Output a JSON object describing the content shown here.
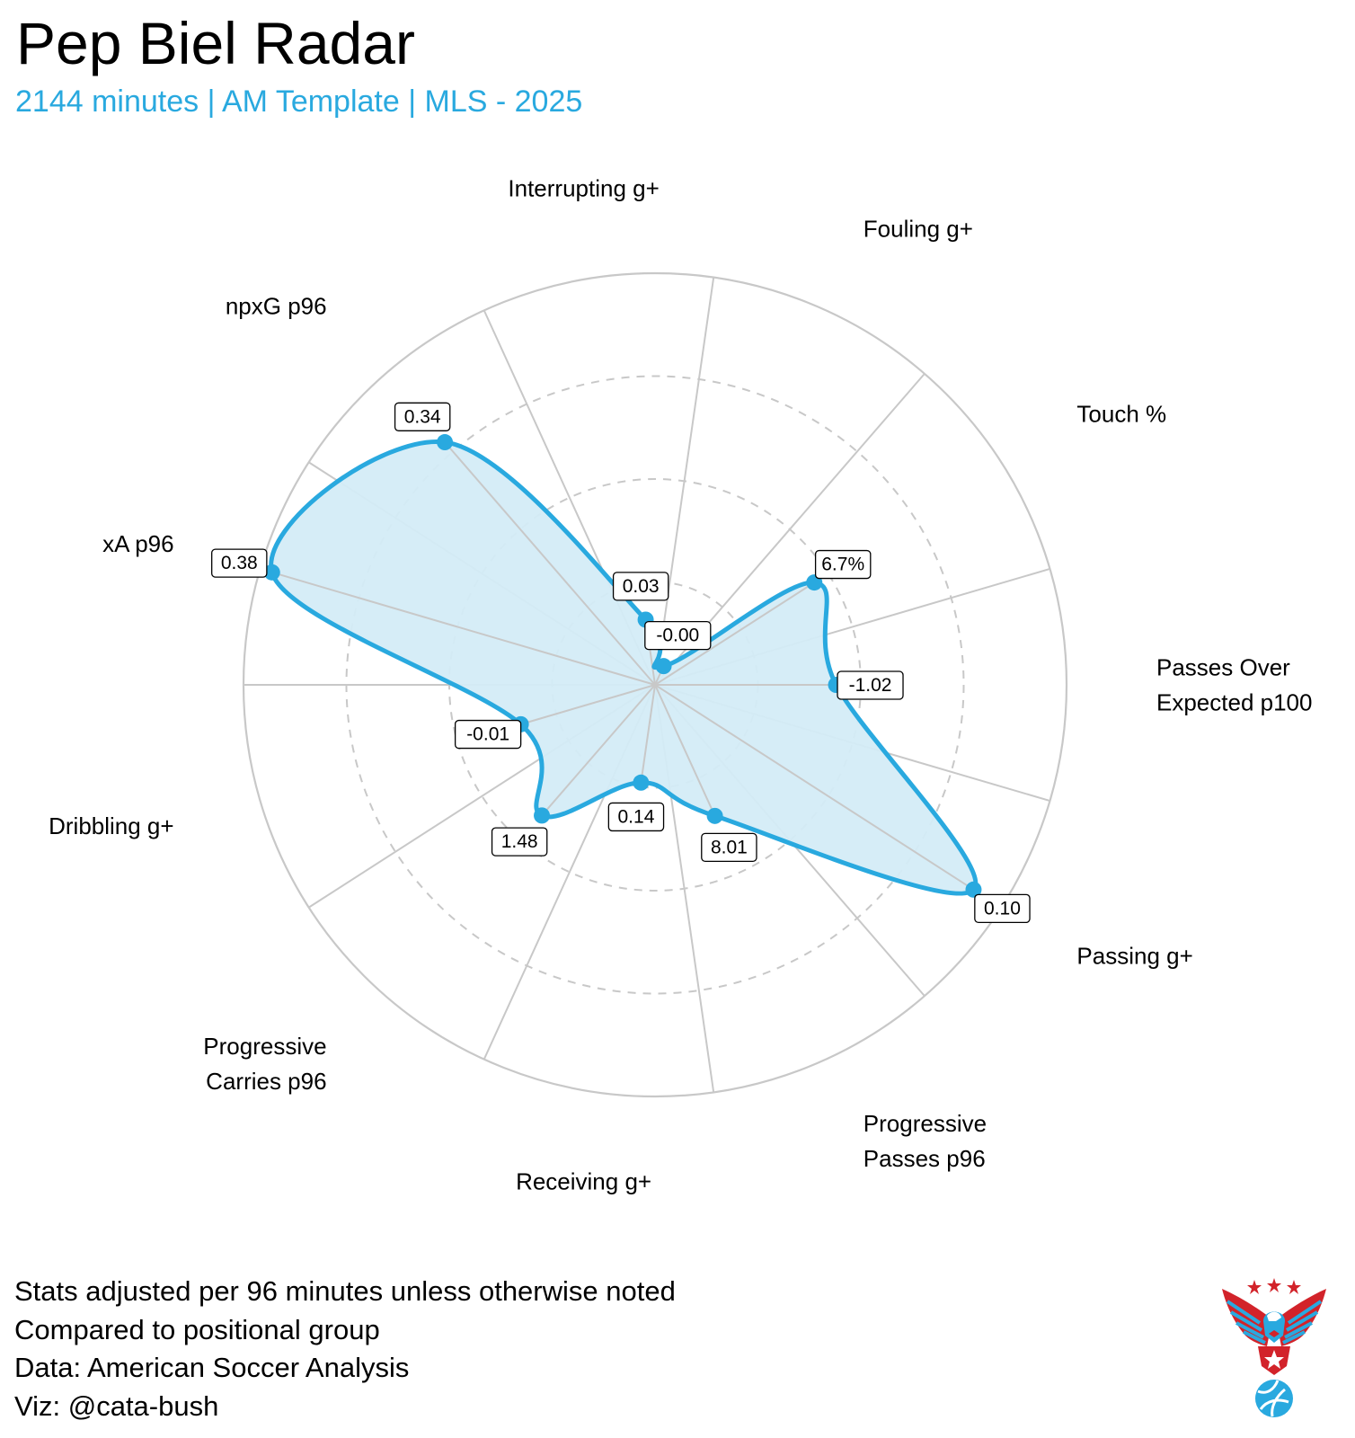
{
  "header": {
    "title": "Pep Biel Radar",
    "subtitle": "2144 minutes | AM Template | MLS - 2025"
  },
  "colors": {
    "accent": "#29a9df",
    "fill": "#d4ecf7",
    "grid": "#c8c8c8",
    "logo_red": "#d2232a",
    "logo_blue": "#29a9df"
  },
  "chart_data": {
    "type": "radar",
    "title": "Pep Biel Radar",
    "subtitle": "2144 minutes | AM Template | MLS - 2025",
    "scale": "percentile rank within positional group",
    "rlim": [
      0,
      1
    ],
    "gridlines_dashed": [
      0.25,
      0.5,
      0.75
    ],
    "axes": [
      {
        "label": [
          "Passes Over",
          "Expected p100"
        ],
        "value": "-1.02",
        "percentile": 0.44
      },
      {
        "label": [
          "Touch %"
        ],
        "value": "6.7%",
        "percentile": 0.46
      },
      {
        "label": [
          "Fouling g+"
        ],
        "value": "-0.00",
        "percentile": 0.05
      },
      {
        "label": [
          "Interrupting g+"
        ],
        "value": "0.03",
        "percentile": 0.16
      },
      {
        "label": [
          "npxG p96"
        ],
        "value": "0.34",
        "percentile": 0.78
      },
      {
        "label": [
          "xA p96"
        ],
        "value": "0.38",
        "percentile": 0.97
      },
      {
        "label": [
          "Dribbling g+"
        ],
        "value": "-0.01",
        "percentile": 0.34
      },
      {
        "label": [
          "Progressive",
          "Carries p96"
        ],
        "value": "1.48",
        "percentile": 0.42
      },
      {
        "label": [
          "Receiving g+"
        ],
        "value": "0.14",
        "percentile": 0.24
      },
      {
        "label": [
          "Progressive",
          "Passes p96"
        ],
        "value": "8.01",
        "percentile": 0.35
      },
      {
        "label": [
          "Passing g+"
        ],
        "value": "0.10",
        "percentile": 0.92
      }
    ]
  },
  "footer": {
    "lines": [
      "Stats adjusted per 96 minutes unless otherwise noted",
      "Compared to positional group",
      "Data: American Soccer Analysis",
      "Viz: @cata-bush"
    ]
  },
  "logo": {
    "icon": "eagle-soccer-logo-icon"
  }
}
